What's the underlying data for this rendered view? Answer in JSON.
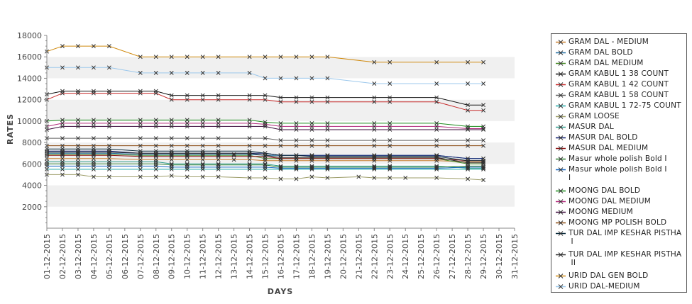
{
  "chart_data": {
    "type": "line",
    "xlabel": "DAYS",
    "ylabel": "RATES",
    "ylim": [
      0,
      18000
    ],
    "yticks": [
      2000,
      4000,
      6000,
      8000,
      10000,
      12000,
      14000,
      16000,
      18000
    ],
    "grid": "alternating bands",
    "legend_position": "right",
    "categories": [
      "01-12-2015",
      "02-12-2015",
      "03-12-2015",
      "04-12-2015",
      "05-12-2015",
      "06-12-2015",
      "07-12-2015",
      "08-12-2015",
      "09-12-2015",
      "10-12-2015",
      "11-12-2015",
      "12-12-2015",
      "13-12-2015",
      "14-12-2015",
      "15-12-2015",
      "16-12-2015",
      "17-12-2015",
      "18-12-2015",
      "19-12-2015",
      "20-12-2015",
      "21-12-2015",
      "22-12-2015",
      "23-12-2015",
      "24-12-2015",
      "25-12-2015",
      "26-12-2015",
      "27-12-2015",
      "28-12-2015",
      "29-12-2015",
      "30-12-2015",
      "31-12-2015"
    ],
    "series": [
      {
        "name": "GRAM DAL - MEDIUM",
        "color": "#c87f2e",
        "values": [
          6500,
          6500,
          6500,
          6500,
          6500,
          null,
          6400,
          6400,
          6400,
          6400,
          6400,
          6400,
          6400,
          6400,
          6300,
          6300,
          6300,
          6300,
          6300,
          null,
          null,
          6300,
          6300,
          null,
          null,
          6300,
          null,
          6200,
          6200,
          null,
          null
        ]
      },
      {
        "name": "GRAM DAL BOLD",
        "color": "#1d6a9e",
        "values": [
          7000,
          7000,
          7000,
          7000,
          7000,
          null,
          6900,
          6900,
          6900,
          6900,
          6900,
          6900,
          6900,
          6900,
          6800,
          6800,
          6800,
          6800,
          6800,
          null,
          null,
          6800,
          6800,
          null,
          null,
          6800,
          null,
          6500,
          6500,
          null,
          null
        ]
      },
      {
        "name": "GRAM DAL MEDIUM",
        "color": "#4a8a2a",
        "values": [
          6900,
          6900,
          6900,
          6900,
          6900,
          null,
          6800,
          6800,
          6800,
          6800,
          6800,
          6800,
          6800,
          6800,
          6500,
          6500,
          6500,
          6500,
          6500,
          null,
          null,
          6500,
          6500,
          null,
          null,
          6500,
          null,
          6000,
          6000,
          null,
          null
        ]
      },
      {
        "name": "GRAM KABUL 1 38 COUNT",
        "color": "#111111",
        "values": [
          12500,
          12800,
          12800,
          12800,
          12800,
          null,
          12800,
          12800,
          12400,
          12400,
          12400,
          12400,
          null,
          12400,
          12400,
          12200,
          12200,
          12200,
          12200,
          null,
          null,
          12200,
          12200,
          null,
          null,
          12200,
          null,
          11500,
          11500,
          null,
          null
        ]
      },
      {
        "name": "GRAM KABUL 1 42 COUNT",
        "color": "#c62828",
        "values": [
          12000,
          12600,
          12600,
          12600,
          12600,
          null,
          12600,
          12600,
          12000,
          12000,
          12000,
          12000,
          null,
          12000,
          12000,
          11800,
          11800,
          11800,
          11800,
          null,
          null,
          11800,
          11800,
          null,
          null,
          11800,
          null,
          11000,
          11000,
          null,
          null
        ]
      },
      {
        "name": "GRAM KABUL 1 58 COUNT",
        "color": "#606060",
        "values": [
          8400,
          8400,
          8400,
          8400,
          8400,
          null,
          8400,
          8400,
          8400,
          8400,
          8400,
          8400,
          null,
          8400,
          8400,
          8200,
          8200,
          8200,
          8200,
          null,
          null,
          8200,
          8200,
          null,
          null,
          8200,
          null,
          8200,
          8200,
          null,
          null
        ]
      },
      {
        "name": "GRAM KABUL 1 72-75 COUNT",
        "color": "#1fa7a7",
        "values": [
          5500,
          5500,
          5500,
          5500,
          5500,
          null,
          5500,
          5500,
          5500,
          5500,
          5500,
          5500,
          null,
          5500,
          5500,
          5500,
          5500,
          5500,
          5500,
          null,
          null,
          5500,
          5500,
          null,
          null,
          5500,
          null,
          5500,
          5500,
          null,
          null
        ]
      },
      {
        "name": "GRAM LOOSE",
        "color": "#9e9e6a",
        "values": [
          5000,
          5000,
          5000,
          4800,
          4800,
          null,
          4800,
          4800,
          4900,
          4800,
          4800,
          4800,
          null,
          4700,
          4700,
          4600,
          4600,
          4800,
          4700,
          null,
          4800,
          4700,
          4700,
          4700,
          null,
          4700,
          null,
          4600,
          4500,
          null,
          null
        ]
      },
      {
        "name": "MASUR DAL",
        "color": "#2a9a8a",
        "values": [
          6200,
          6200,
          6200,
          6200,
          6200,
          null,
          6200,
          6200,
          6000,
          6000,
          6000,
          6000,
          null,
          6000,
          6000,
          5800,
          5800,
          5800,
          5800,
          null,
          null,
          5800,
          5800,
          null,
          null,
          5800,
          null,
          5600,
          5600,
          null,
          null
        ]
      },
      {
        "name": "MASUR DAL BOLD",
        "color": "#0a1a6a",
        "values": [
          7200,
          7200,
          7200,
          7200,
          7200,
          null,
          7000,
          7000,
          7000,
          7000,
          7000,
          7000,
          null,
          7000,
          7000,
          6800,
          6800,
          6800,
          6800,
          null,
          null,
          6800,
          6800,
          null,
          null,
          6800,
          null,
          6500,
          6500,
          null,
          null
        ]
      },
      {
        "name": "MASUR DAL MEDIUM",
        "color": "#8a1010",
        "values": [
          6800,
          6800,
          6800,
          6800,
          6800,
          null,
          6700,
          6700,
          6700,
          6700,
          6700,
          6700,
          null,
          6700,
          6700,
          6500,
          6500,
          6500,
          6500,
          null,
          null,
          6500,
          6500,
          null,
          null,
          6500,
          null,
          6300,
          6300,
          null,
          null
        ]
      },
      {
        "name": "Masur whole polish Bold I",
        "color": "#2e7d32",
        "values": [
          6000,
          6000,
          6000,
          6000,
          6000,
          null,
          6000,
          6000,
          5900,
          5900,
          5900,
          5900,
          null,
          5900,
          5900,
          5700,
          5700,
          5700,
          5700,
          null,
          null,
          5700,
          5700,
          null,
          null,
          5700,
          null,
          5800,
          5800,
          null,
          null
        ]
      },
      {
        "name": "Masur whole polish Bold I\nI",
        "color": "#1565c0",
        "values": [
          5800,
          5800,
          5800,
          5800,
          5800,
          null,
          5800,
          5800,
          5700,
          5700,
          5700,
          5700,
          null,
          5700,
          5700,
          5600,
          5600,
          5600,
          5600,
          null,
          null,
          5600,
          5600,
          null,
          null,
          5600,
          null,
          5700,
          5700,
          null,
          null
        ]
      },
      {
        "name": "MOONG DAL BOLD",
        "color": "#1a8a1a",
        "values": [
          10000,
          10100,
          10100,
          10100,
          10100,
          null,
          10100,
          10100,
          10100,
          10100,
          10100,
          10100,
          null,
          10100,
          9900,
          9800,
          9800,
          9800,
          9800,
          null,
          null,
          9800,
          9800,
          null,
          null,
          9800,
          null,
          9500,
          9500,
          null,
          null
        ]
      },
      {
        "name": "MOONG DAL MEDIUM",
        "color": "#b0287a",
        "values": [
          9500,
          9800,
          9800,
          9800,
          9800,
          null,
          9800,
          9800,
          9800,
          9800,
          9800,
          9800,
          null,
          9800,
          9700,
          9500,
          9500,
          9500,
          9500,
          null,
          null,
          9500,
          9500,
          null,
          null,
          9500,
          null,
          9300,
          9300,
          null,
          null
        ]
      },
      {
        "name": "MOONG MEDIUM",
        "color": "#3a0a3a",
        "values": [
          9200,
          9500,
          9500,
          9500,
          9500,
          null,
          9500,
          9500,
          9500,
          9500,
          9500,
          9500,
          null,
          9500,
          9500,
          9200,
          9200,
          9200,
          9200,
          null,
          null,
          9200,
          9200,
          null,
          null,
          9200,
          null,
          9200,
          9200,
          null,
          null
        ]
      },
      {
        "name": "MOONG MP POLISH BOLD",
        "color": "#8a4a10",
        "values": [
          7700,
          7700,
          7700,
          7700,
          7700,
          null,
          7700,
          7700,
          7700,
          7700,
          7700,
          7700,
          null,
          7700,
          7700,
          7700,
          7700,
          7700,
          7700,
          null,
          null,
          7700,
          7700,
          null,
          null,
          7700,
          null,
          7700,
          7700,
          null,
          null
        ]
      },
      {
        "name": "TUR DAL IMP KESHAR PISTHA\n I",
        "color": "#0a2a3a",
        "values": [
          7400,
          7400,
          7400,
          7400,
          7400,
          null,
          7200,
          7200,
          7200,
          7200,
          7200,
          7200,
          null,
          7200,
          7000,
          6800,
          6800,
          6700,
          6700,
          null,
          null,
          6700,
          6700,
          null,
          null,
          6700,
          null,
          6300,
          6300,
          null,
          null
        ]
      },
      {
        "name": "TUR DAL IMP KESHAR PISTHA\n II",
        "color": "#2a2a2a",
        "values": [
          7100,
          7100,
          7100,
          7100,
          7100,
          null,
          7000,
          7000,
          7000,
          7000,
          7000,
          7000,
          null,
          7000,
          6800,
          6600,
          6600,
          6600,
          6600,
          null,
          null,
          6600,
          6600,
          null,
          null,
          6600,
          null,
          6100,
          6100,
          null,
          null
        ]
      },
      {
        "name": "URID DAL GEN BOLD",
        "color": "#d08a10",
        "values": [
          16500,
          17000,
          17000,
          17000,
          17000,
          null,
          16000,
          16000,
          16000,
          16000,
          16000,
          16000,
          null,
          16000,
          16000,
          16000,
          16000,
          16000,
          16000,
          null,
          null,
          15500,
          15500,
          null,
          null,
          15500,
          null,
          15500,
          15500,
          null,
          null
        ]
      },
      {
        "name": "URID DAL-MEDIUM",
        "color": "#9cc8ec",
        "values": [
          15000,
          15000,
          15000,
          15000,
          15000,
          null,
          14500,
          14500,
          14500,
          14500,
          14500,
          14500,
          null,
          14500,
          14000,
          14000,
          14000,
          14000,
          14000,
          null,
          null,
          13500,
          13500,
          null,
          null,
          13500,
          null,
          13500,
          13500,
          null,
          null
        ]
      }
    ]
  }
}
